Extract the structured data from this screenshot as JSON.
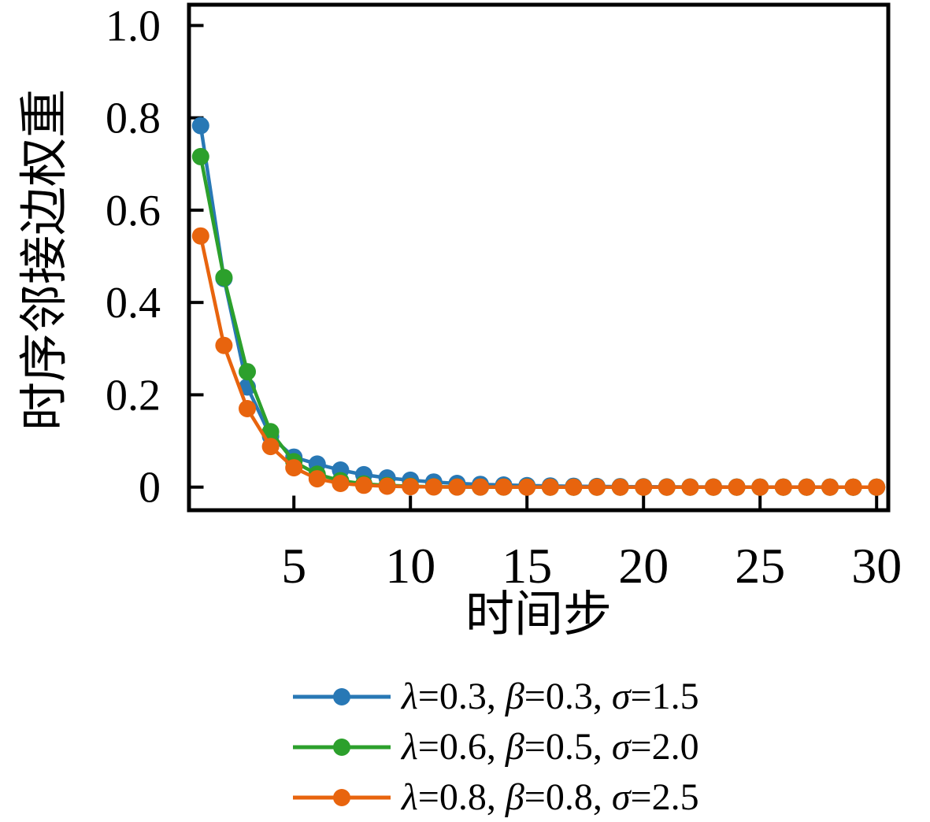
{
  "chart_data": {
    "type": "line",
    "title": "",
    "xlabel": "时间步",
    "ylabel": "时序邻接边权重",
    "grid": false,
    "legend_position": "below-plot",
    "marker": "circle",
    "axis_color": "#000000",
    "background_color": "#ffffff",
    "xlim": [
      0.5,
      30.5
    ],
    "ylim": [
      -0.05,
      1.045
    ],
    "xticks": {
      "values": [
        5,
        10,
        15,
        20,
        25,
        30
      ],
      "labels": [
        "5",
        "10",
        "15",
        "20",
        "25",
        "30"
      ]
    },
    "yticks": {
      "values": [
        0,
        0.2,
        0.4,
        0.6,
        0.8,
        1.0
      ],
      "labels": [
        "0",
        "0.2",
        "0.4",
        "0.6",
        "0.8",
        "1.0"
      ]
    },
    "x": [
      1,
      2,
      3,
      4,
      5,
      6,
      7,
      8,
      9,
      10,
      11,
      12,
      13,
      14,
      15,
      16,
      17,
      18,
      19,
      20,
      21,
      22,
      23,
      24,
      25,
      26,
      27,
      28,
      29,
      30
    ],
    "series": [
      {
        "name": "λ=0.3, β=0.3, σ=1.5",
        "color": "#2878b5",
        "values": [
          0.783,
          0.452,
          0.217,
          0.11,
          0.065,
          0.05,
          0.037,
          0.027,
          0.02,
          0.015,
          0.011,
          0.008,
          0.006,
          0.0045,
          0.0033,
          0.0025,
          0.0018,
          0.0014,
          0.001,
          0.0007,
          0.0005,
          0.0004,
          0.0003,
          0.0002,
          0.0002,
          0.0001,
          0.0001,
          0.0001,
          0.0,
          0.0
        ]
      },
      {
        "name": "λ=0.6, β=0.5, σ=2.0",
        "color": "#2ca02c",
        "values": [
          0.716,
          0.454,
          0.25,
          0.12,
          0.055,
          0.028,
          0.014,
          0.007,
          0.0035,
          0.0018,
          0.0009,
          0.0004,
          0.0002,
          0.0001,
          0.0001,
          0.0,
          0.0,
          0.0,
          0.0,
          0.0,
          0.0,
          0.0,
          0.0,
          0.0,
          0.0,
          0.0,
          0.0,
          0.0,
          0.0,
          0.0
        ]
      },
      {
        "name": "λ=0.8, β=0.8, σ=2.5",
        "color": "#e8640e",
        "values": [
          0.544,
          0.307,
          0.17,
          0.088,
          0.042,
          0.018,
          0.008,
          0.004,
          0.002,
          0.001,
          0.0005,
          0.0002,
          0.0001,
          0.0001,
          0.0,
          0.0,
          0.0,
          0.0,
          0.0,
          0.0,
          0.0,
          0.0,
          0.0,
          0.0,
          0.0,
          0.0,
          0.0,
          0.0,
          0.0,
          0.0
        ]
      }
    ]
  }
}
